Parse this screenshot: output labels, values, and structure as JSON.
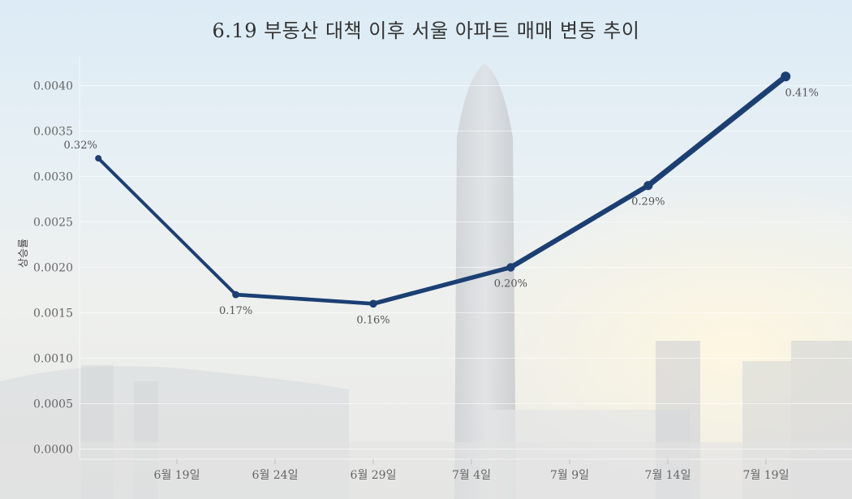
{
  "chart_data": {
    "type": "line",
    "title": "6.19 부동산 대책 이후 서울 아파트 매매 변동 추이",
    "ylabel": "상승률",
    "ylim": [
      0,
      0.0043
    ],
    "yticks": [
      "0.0000",
      "0.0005",
      "0.0010",
      "0.0015",
      "0.0020",
      "0.0025",
      "0.0030",
      "0.0035",
      "0.0040"
    ],
    "xticks": [
      "6월 19일",
      "6월 24일",
      "6월 29일",
      "7월 4일",
      "7월 9일",
      "7월 14일",
      "7월 19일"
    ],
    "grid": true,
    "series": [
      {
        "color": "#1c3f73",
        "points": [
          {
            "date": "6월 15일",
            "value": 0.0032,
            "label": "0.32%"
          },
          {
            "date": "6월 22일",
            "value": 0.0017,
            "label": "0.17%"
          },
          {
            "date": "6월 29일",
            "value": 0.0016,
            "label": "0.16%"
          },
          {
            "date": "7월 6일",
            "value": 0.002,
            "label": "0.20%"
          },
          {
            "date": "7월 13일",
            "value": 0.0029,
            "label": "0.29%"
          },
          {
            "date": "7월 20일",
            "value": 0.0041,
            "label": "0.41%"
          }
        ]
      }
    ]
  }
}
